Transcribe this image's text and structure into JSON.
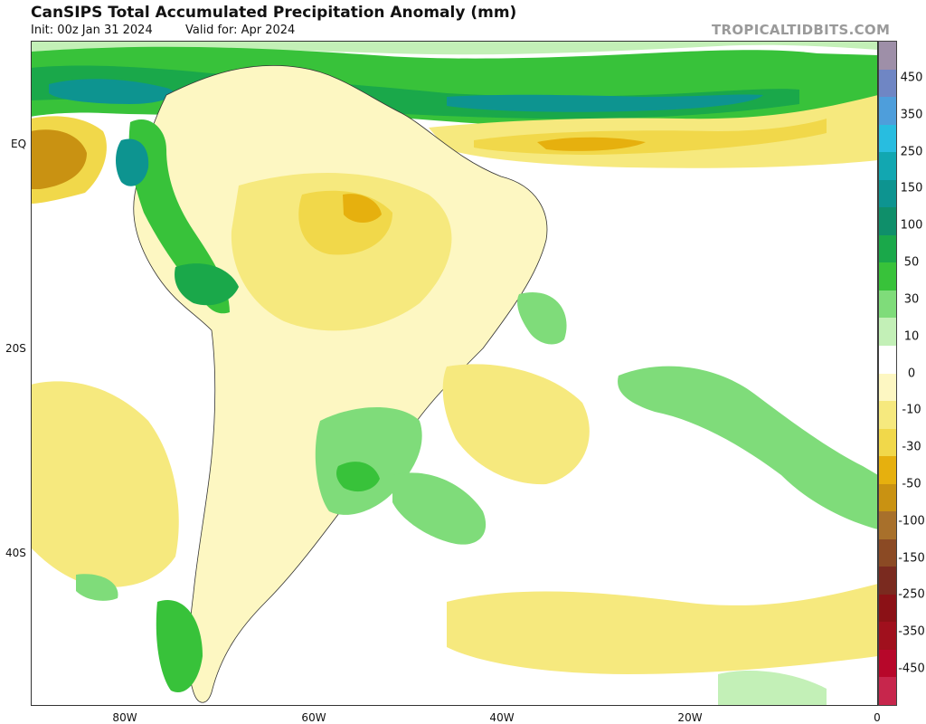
{
  "header": {
    "title": "CanSIPS Total Accumulated Precipitation Anomaly (mm)",
    "init": "Init: 00z Jan 31 2024",
    "valid": "Valid for: Apr 2024",
    "brand": "TROPICALTIDBITS.COM"
  },
  "axes": {
    "lat_labels": [
      "EQ",
      "20S",
      "40S"
    ],
    "lon_labels": [
      "80W",
      "60W",
      "40W",
      "20W",
      "0"
    ]
  },
  "colorbar": {
    "labels": [
      "450",
      "350",
      "250",
      "150",
      "100",
      "50",
      "30",
      "10",
      "0",
      "-10",
      "-30",
      "-50",
      "-100",
      "-150",
      "-250",
      "-350",
      "-450"
    ],
    "colors": [
      "#9e8fa8",
      "#6f86c4",
      "#4e9edb",
      "#28bde0",
      "#12a7b1",
      "#0d9490",
      "#0f8f6a",
      "#1aa84a",
      "#38c23a",
      "#7fdc7a",
      "#c3f0b7",
      "#ffffff",
      "#fdf7c2",
      "#f6e97e",
      "#f1d84a",
      "#e6b00e",
      "#c99212",
      "#a8702b",
      "#8b4a24",
      "#7a2a1f",
      "#8b1116",
      "#a0101d",
      "#b7072a",
      "#c7264c"
    ]
  }
}
